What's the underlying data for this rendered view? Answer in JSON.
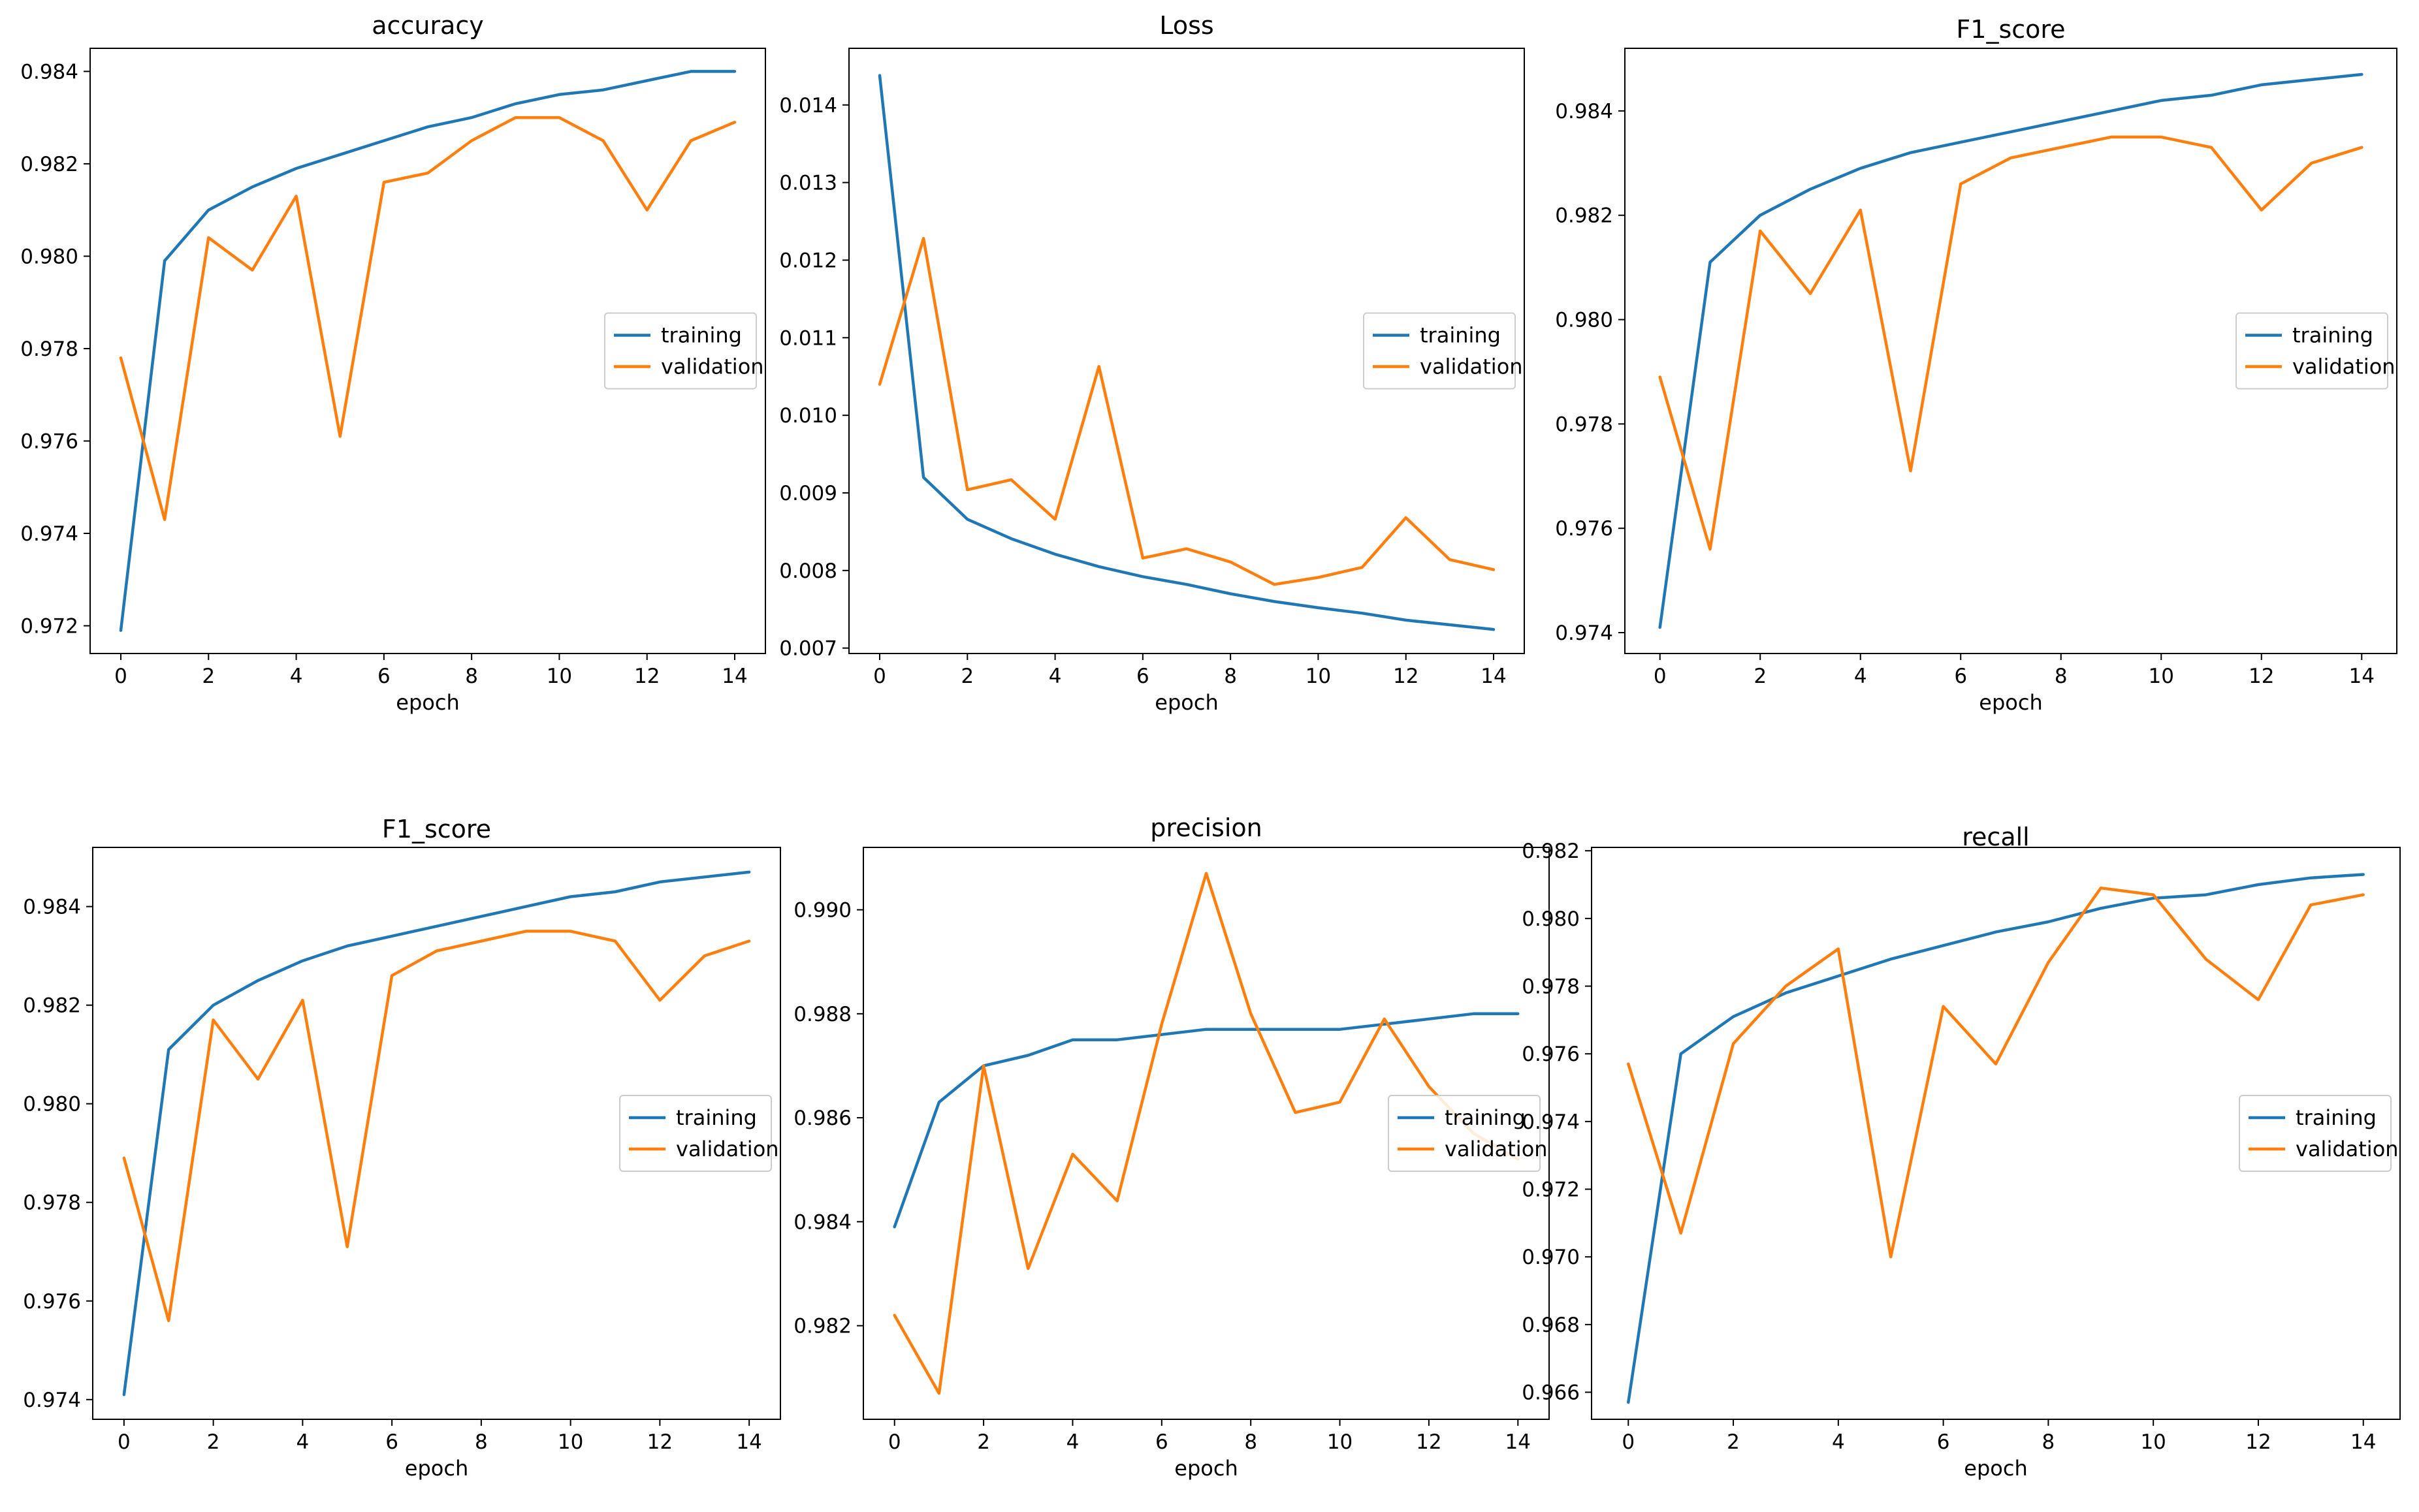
{
  "figure": {
    "subplot_count": 6
  },
  "colors": {
    "training": "#1f77b4",
    "validation": "#ff7f0e",
    "axes": "#000000",
    "background": "#ffffff"
  },
  "chart_data": [
    {
      "type": "line",
      "title": "accuracy",
      "xlabel": "epoch",
      "ylabel": "",
      "x": [
        0,
        1,
        2,
        3,
        4,
        5,
        6,
        7,
        8,
        9,
        10,
        11,
        12,
        13,
        14
      ],
      "xticks": [
        0,
        2,
        4,
        6,
        8,
        10,
        12,
        14
      ],
      "xlim": [
        -0.7,
        14.7
      ],
      "ylim": [
        0.9714,
        0.9845
      ],
      "yticks": [
        0.972,
        0.974,
        0.976,
        0.978,
        0.98,
        0.982,
        0.984
      ],
      "ytick_labels": [
        "0.972",
        "0.974",
        "0.976",
        "0.978",
        "0.980",
        "0.982",
        "0.984"
      ],
      "legend_position": "center-right",
      "series": [
        {
          "name": "training",
          "color": "#1f77b4",
          "values": [
            0.9719,
            0.9799,
            0.981,
            0.9815,
            0.9819,
            0.9822,
            0.9825,
            0.9828,
            0.983,
            0.9833,
            0.9835,
            0.9836,
            0.9838,
            0.984,
            0.984
          ]
        },
        {
          "name": "validation",
          "color": "#ff7f0e",
          "values": [
            0.9778,
            0.9743,
            0.9804,
            0.9797,
            0.9813,
            0.9761,
            0.9816,
            0.9818,
            0.9825,
            0.983,
            0.983,
            0.9825,
            0.981,
            0.9825,
            0.9829
          ]
        }
      ]
    },
    {
      "type": "line",
      "title": "Loss",
      "xlabel": "epoch",
      "ylabel": "",
      "x": [
        0,
        1,
        2,
        3,
        4,
        5,
        6,
        7,
        8,
        9,
        10,
        11,
        12,
        13,
        14
      ],
      "xticks": [
        0,
        2,
        4,
        6,
        8,
        10,
        12,
        14
      ],
      "xlim": [
        -0.7,
        14.7
      ],
      "ylim": [
        0.00693,
        0.01473
      ],
      "yticks": [
        0.007,
        0.008,
        0.009,
        0.01,
        0.011,
        0.012,
        0.013,
        0.014
      ],
      "ytick_labels": [
        "0.007",
        "0.008",
        "0.009",
        "0.010",
        "0.011",
        "0.012",
        "0.013",
        "0.014"
      ],
      "legend_position": "center-right",
      "series": [
        {
          "name": "training",
          "color": "#1f77b4",
          "values": [
            0.01438,
            0.0092,
            0.00866,
            0.00841,
            0.00821,
            0.00805,
            0.00792,
            0.00782,
            0.0077,
            0.0076,
            0.00752,
            0.00745,
            0.00736,
            0.0073,
            0.00724
          ]
        },
        {
          "name": "validation",
          "color": "#ff7f0e",
          "values": [
            0.0104,
            0.01228,
            0.00904,
            0.00917,
            0.00866,
            0.01063,
            0.00816,
            0.00828,
            0.00811,
            0.00782,
            0.00791,
            0.00804,
            0.00868,
            0.00814,
            0.00801
          ]
        }
      ]
    },
    {
      "type": "line",
      "title": "F1_score",
      "xlabel": "epoch",
      "ylabel": "",
      "x": [
        0,
        1,
        2,
        3,
        4,
        5,
        6,
        7,
        8,
        9,
        10,
        11,
        12,
        13,
        14
      ],
      "xticks": [
        0,
        2,
        4,
        6,
        8,
        10,
        12,
        14
      ],
      "xlim": [
        -0.7,
        14.7
      ],
      "ylim": [
        0.9736,
        0.9852
      ],
      "yticks": [
        0.974,
        0.976,
        0.978,
        0.98,
        0.982,
        0.984
      ],
      "ytick_labels": [
        "0.974",
        "0.976",
        "0.978",
        "0.980",
        "0.982",
        "0.984"
      ],
      "legend_position": "center-right",
      "series": [
        {
          "name": "training",
          "color": "#1f77b4",
          "values": [
            0.9741,
            0.9811,
            0.982,
            0.9825,
            0.9829,
            0.9832,
            0.9834,
            0.9836,
            0.9838,
            0.984,
            0.9842,
            0.9843,
            0.9845,
            0.9846,
            0.9847
          ]
        },
        {
          "name": "validation",
          "color": "#ff7f0e",
          "values": [
            0.9789,
            0.9756,
            0.9817,
            0.9805,
            0.9821,
            0.9771,
            0.9826,
            0.9831,
            0.9833,
            0.9835,
            0.9835,
            0.9833,
            0.9821,
            0.983,
            0.9833
          ]
        }
      ]
    },
    {
      "type": "line",
      "title": "F1_score",
      "xlabel": "epoch",
      "ylabel": "",
      "x": [
        0,
        1,
        2,
        3,
        4,
        5,
        6,
        7,
        8,
        9,
        10,
        11,
        12,
        13,
        14
      ],
      "xticks": [
        0,
        2,
        4,
        6,
        8,
        10,
        12,
        14
      ],
      "xlim": [
        -0.7,
        14.7
      ],
      "ylim": [
        0.9736,
        0.9852
      ],
      "yticks": [
        0.974,
        0.976,
        0.978,
        0.98,
        0.982,
        0.984
      ],
      "ytick_labels": [
        "0.974",
        "0.976",
        "0.978",
        "0.980",
        "0.982",
        "0.984"
      ],
      "legend_position": "center-right",
      "series": [
        {
          "name": "training",
          "color": "#1f77b4",
          "values": [
            0.9741,
            0.9811,
            0.982,
            0.9825,
            0.9829,
            0.9832,
            0.9834,
            0.9836,
            0.9838,
            0.984,
            0.9842,
            0.9843,
            0.9845,
            0.9846,
            0.9847
          ]
        },
        {
          "name": "validation",
          "color": "#ff7f0e",
          "values": [
            0.9789,
            0.9756,
            0.9817,
            0.9805,
            0.9821,
            0.9771,
            0.9826,
            0.9831,
            0.9833,
            0.9835,
            0.9835,
            0.9833,
            0.9821,
            0.983,
            0.9833
          ]
        }
      ]
    },
    {
      "type": "line",
      "title": "precision",
      "xlabel": "epoch",
      "ylabel": "",
      "x": [
        0,
        1,
        2,
        3,
        4,
        5,
        6,
        7,
        8,
        9,
        10,
        11,
        12,
        13,
        14
      ],
      "xticks": [
        0,
        2,
        4,
        6,
        8,
        10,
        12,
        14
      ],
      "xlim": [
        -0.7,
        14.7
      ],
      "ylim": [
        0.9802,
        0.9912
      ],
      "yticks": [
        0.982,
        0.984,
        0.986,
        0.988,
        0.99
      ],
      "ytick_labels": [
        "0.982",
        "0.984",
        "0.986",
        "0.988",
        "0.990"
      ],
      "legend_position": "center-right",
      "series": [
        {
          "name": "training",
          "color": "#1f77b4",
          "values": [
            0.9839,
            0.9863,
            0.987,
            0.9872,
            0.9875,
            0.9875,
            0.9876,
            0.9877,
            0.9877,
            0.9877,
            0.9877,
            0.9878,
            0.9879,
            0.988,
            0.988
          ]
        },
        {
          "name": "validation",
          "color": "#ff7f0e",
          "values": [
            0.9822,
            0.9807,
            0.987,
            0.9831,
            0.9853,
            0.9844,
            0.9878,
            0.9907,
            0.988,
            0.9861,
            0.9863,
            0.9879,
            0.9866,
            0.9857,
            0.9852
          ]
        }
      ]
    },
    {
      "type": "line",
      "title": "recall",
      "xlabel": "epoch",
      "ylabel": "",
      "x": [
        0,
        1,
        2,
        3,
        4,
        5,
        6,
        7,
        8,
        9,
        10,
        11,
        12,
        13,
        14
      ],
      "xticks": [
        0,
        2,
        4,
        6,
        8,
        10,
        12,
        14
      ],
      "xlim": [
        -0.7,
        14.7
      ],
      "ylim": [
        0.9652,
        0.9821
      ],
      "yticks": [
        0.966,
        0.968,
        0.97,
        0.972,
        0.974,
        0.976,
        0.978,
        0.98,
        0.982
      ],
      "ytick_labels": [
        "0.966",
        "0.968",
        "0.970",
        "0.972",
        "0.974",
        "0.976",
        "0.978",
        "0.980",
        "0.982"
      ],
      "legend_position": "center-right",
      "series": [
        {
          "name": "training",
          "color": "#1f77b4",
          "values": [
            0.9657,
            0.976,
            0.9771,
            0.9778,
            0.9783,
            0.9788,
            0.9792,
            0.9796,
            0.9799,
            0.9803,
            0.9806,
            0.9807,
            0.981,
            0.9812,
            0.9813
          ]
        },
        {
          "name": "validation",
          "color": "#ff7f0e",
          "values": [
            0.9757,
            0.9707,
            0.9763,
            0.978,
            0.9791,
            0.97,
            0.9774,
            0.9757,
            0.9787,
            0.9809,
            0.9807,
            0.9788,
            0.9776,
            0.9804,
            0.9807
          ]
        }
      ]
    }
  ]
}
